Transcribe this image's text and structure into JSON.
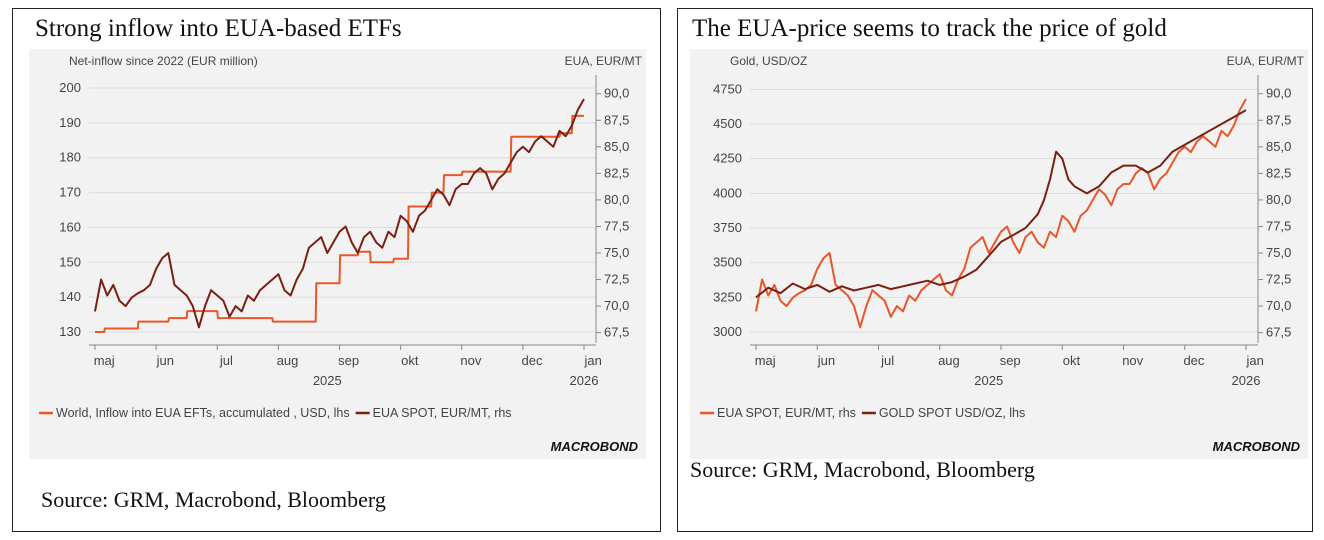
{
  "panels": [
    {
      "title": "Strong inflow into EUA-based ETFs",
      "source": "Source: GRM, Macrobond, Bloomberg",
      "logo": "MACROBOND"
    },
    {
      "title": "The EUA-price seems to track the price of gold",
      "source": "Source: GRM, Macrobond, Bloomberg",
      "logo": "MACROBOND"
    }
  ],
  "colors": {
    "orange": "#e8562a",
    "brown": "#7a1f12",
    "background": "#f2f2f2"
  },
  "chart_data": [
    {
      "type": "line",
      "title": "Strong inflow into EUA-based ETFs",
      "ylabel_left": "Net-inflow since 2022 (EUR million)",
      "ylabel_right": "EUA, EUR/MT",
      "ylim_left": [
        128,
        202
      ],
      "ylim_right": [
        66.9,
        91.2
      ],
      "yticks_left": [
        130,
        140,
        150,
        160,
        170,
        180,
        190,
        200
      ],
      "yticks_right": [
        "67,5",
        "70,0",
        "72,5",
        "75,0",
        "77,5",
        "80,0",
        "82,5",
        "85,0",
        "87,5",
        "90,0"
      ],
      "yticks_right_values": [
        67.5,
        70,
        72.5,
        75,
        77.5,
        80,
        82.5,
        85,
        87.5,
        90
      ],
      "x_months": [
        "maj",
        "jun",
        "jul",
        "aug",
        "sep",
        "okt",
        "nov",
        "dec",
        "jan"
      ],
      "x_years": [
        "2025",
        "2026"
      ],
      "grid": true,
      "series": [
        {
          "name": "World, Inflow into EUA EFTs, accumulated , USD, lhs",
          "axis": "left",
          "color": "#e8562a",
          "x": [
            0,
            0.15,
            0.16,
            0.7,
            0.71,
            1.2,
            1.21,
            1.5,
            1.51,
            2.0,
            2.01,
            2.2,
            2.21,
            2.9,
            2.91,
            3.6,
            3.61,
            3.62,
            3.7,
            3.71,
            4.0,
            4.01,
            4.3,
            4.31,
            4.5,
            4.51,
            4.88,
            4.89,
            5.12,
            5.13,
            5.2,
            5.5,
            5.51,
            5.7,
            5.71,
            6.0,
            6.01,
            6.5,
            6.51,
            6.8,
            6.81,
            7.0,
            7.01,
            7.3,
            7.31,
            7.6,
            7.61,
            7.8,
            7.81,
            8.0
          ],
          "values": [
            130,
            130,
            131,
            131,
            133,
            133,
            134,
            134,
            136,
            136,
            134,
            134,
            134,
            134,
            133,
            133,
            133,
            144,
            144,
            144,
            144,
            152,
            152,
            153,
            153,
            150,
            150,
            151,
            151,
            166,
            166,
            166,
            170,
            170,
            175,
            175,
            176,
            176,
            176,
            176,
            186,
            186,
            186,
            186,
            186,
            186,
            187,
            187,
            192,
            192
          ]
        },
        {
          "name": "EUA SPOT, EUR/MT, rhs",
          "axis": "right",
          "color": "#7a1f12",
          "x": [
            0,
            0.1,
            0.2,
            0.3,
            0.4,
            0.5,
            0.6,
            0.7,
            0.8,
            0.9,
            1.0,
            1.1,
            1.2,
            1.3,
            1.4,
            1.5,
            1.6,
            1.7,
            1.8,
            1.9,
            2.0,
            2.1,
            2.2,
            2.3,
            2.4,
            2.5,
            2.6,
            2.7,
            2.8,
            2.9,
            3.0,
            3.1,
            3.2,
            3.3,
            3.4,
            3.5,
            3.6,
            3.7,
            3.8,
            3.9,
            4.0,
            4.1,
            4.2,
            4.3,
            4.4,
            4.5,
            4.6,
            4.7,
            4.8,
            4.9,
            5.0,
            5.1,
            5.2,
            5.3,
            5.4,
            5.5,
            5.6,
            5.7,
            5.8,
            5.9,
            6.0,
            6.1,
            6.2,
            6.3,
            6.4,
            6.5,
            6.6,
            6.7,
            6.8,
            6.9,
            7.0,
            7.1,
            7.2,
            7.3,
            7.4,
            7.5,
            7.6,
            7.7,
            7.8,
            7.9,
            8.0
          ],
          "values": [
            69.5,
            72.5,
            71.0,
            72.0,
            70.5,
            70.0,
            70.8,
            71.2,
            71.5,
            72.0,
            73.5,
            74.5,
            75.0,
            72.0,
            71.5,
            71.0,
            70.0,
            68.0,
            70.0,
            71.5,
            71.0,
            70.5,
            69.0,
            70.0,
            69.5,
            71.0,
            70.5,
            71.5,
            72.0,
            72.5,
            73.0,
            71.5,
            71.0,
            72.5,
            73.5,
            75.5,
            76.0,
            76.5,
            75.0,
            76.0,
            77.0,
            77.5,
            76.0,
            75.0,
            76.5,
            77.0,
            76.0,
            75.5,
            77.0,
            76.5,
            78.5,
            78.0,
            77.0,
            78.5,
            79.0,
            80.0,
            81.0,
            80.5,
            79.5,
            81.0,
            81.5,
            81.5,
            82.5,
            83.0,
            82.5,
            81.0,
            82.0,
            82.5,
            83.5,
            84.5,
            85.0,
            84.5,
            85.5,
            86.0,
            85.5,
            85.0,
            86.5,
            86.0,
            87.0,
            88.5,
            89.5
          ]
        }
      ]
    },
    {
      "type": "line",
      "title": "The EUA-price seems to track the price of gold",
      "ylabel_left": "Gold, USD/OZ",
      "ylabel_right": "EUA, EUR/MT",
      "ylim_left": [
        2950,
        4810
      ],
      "ylim_right": [
        66.9,
        91.2
      ],
      "yticks_left": [
        3000,
        3250,
        3500,
        3750,
        4000,
        4250,
        4500,
        4750
      ],
      "yticks_right": [
        "67,5",
        "70,0",
        "72,5",
        "75,0",
        "77,5",
        "80,0",
        "82,5",
        "85,0",
        "87,5",
        "90,0"
      ],
      "yticks_right_values": [
        67.5,
        70,
        72.5,
        75,
        77.5,
        80,
        82.5,
        85,
        87.5,
        90
      ],
      "x_months": [
        "maj",
        "jun",
        "jul",
        "aug",
        "sep",
        "okt",
        "nov",
        "dec",
        "jan"
      ],
      "x_years": [
        "2025",
        "2026"
      ],
      "grid": true,
      "series": [
        {
          "name": "EUA SPOT, EUR/MT, rhs",
          "axis": "right",
          "color": "#e8562a",
          "x": [
            0,
            0.1,
            0.2,
            0.3,
            0.4,
            0.5,
            0.6,
            0.7,
            0.8,
            0.9,
            1.0,
            1.1,
            1.2,
            1.3,
            1.4,
            1.5,
            1.6,
            1.7,
            1.8,
            1.9,
            2.0,
            2.1,
            2.2,
            2.3,
            2.4,
            2.5,
            2.6,
            2.7,
            2.8,
            2.9,
            3.0,
            3.1,
            3.2,
            3.3,
            3.4,
            3.5,
            3.6,
            3.7,
            3.8,
            3.9,
            4.0,
            4.1,
            4.2,
            4.3,
            4.4,
            4.5,
            4.6,
            4.7,
            4.8,
            4.9,
            5.0,
            5.1,
            5.2,
            5.3,
            5.4,
            5.5,
            5.6,
            5.7,
            5.8,
            5.9,
            6.0,
            6.1,
            6.2,
            6.3,
            6.4,
            6.5,
            6.6,
            6.7,
            6.8,
            6.9,
            7.0,
            7.1,
            7.2,
            7.3,
            7.4,
            7.5,
            7.6,
            7.7,
            7.8,
            7.9,
            8.0
          ],
          "values": [
            69.5,
            72.5,
            71.0,
            72.0,
            70.5,
            70.0,
            70.8,
            71.2,
            71.5,
            72.0,
            73.5,
            74.5,
            75.0,
            72.0,
            71.5,
            71.0,
            70.0,
            68.0,
            70.0,
            71.5,
            71.0,
            70.5,
            69.0,
            70.0,
            69.5,
            71.0,
            70.5,
            71.5,
            72.0,
            72.5,
            73.0,
            71.5,
            71.0,
            72.5,
            73.5,
            75.5,
            76.0,
            76.5,
            75.0,
            76.0,
            77.0,
            77.5,
            76.0,
            75.0,
            76.5,
            77.0,
            76.0,
            75.5,
            77.0,
            76.5,
            78.5,
            78.0,
            77.0,
            78.5,
            79.0,
            80.0,
            81.0,
            80.5,
            79.5,
            81.0,
            81.5,
            81.5,
            82.5,
            83.0,
            82.5,
            81.0,
            82.0,
            82.5,
            83.5,
            84.5,
            85.0,
            84.5,
            85.5,
            86.0,
            85.5,
            85.0,
            86.5,
            86.0,
            87.0,
            88.5,
            89.5
          ]
        },
        {
          "name": "GOLD SPOT USD/OZ, lhs",
          "axis": "left",
          "color": "#7a1f12",
          "x": [
            0,
            0.2,
            0.4,
            0.6,
            0.8,
            1.0,
            1.2,
            1.4,
            1.6,
            1.8,
            2.0,
            2.2,
            2.4,
            2.6,
            2.8,
            3.0,
            3.2,
            3.4,
            3.6,
            3.8,
            4.0,
            4.2,
            4.4,
            4.6,
            4.7,
            4.8,
            4.9,
            5.0,
            5.1,
            5.2,
            5.4,
            5.6,
            5.8,
            6.0,
            6.2,
            6.4,
            6.6,
            6.8,
            7.0,
            7.2,
            7.4,
            7.6,
            7.8,
            8.0
          ],
          "values": [
            3250,
            3320,
            3280,
            3350,
            3310,
            3340,
            3290,
            3330,
            3300,
            3320,
            3340,
            3310,
            3330,
            3350,
            3370,
            3340,
            3360,
            3400,
            3450,
            3550,
            3650,
            3700,
            3750,
            3850,
            3950,
            4100,
            4300,
            4250,
            4100,
            4050,
            4000,
            4050,
            4150,
            4200,
            4200,
            4150,
            4200,
            4300,
            4350,
            4400,
            4450,
            4500,
            4550,
            4600
          ]
        }
      ]
    }
  ]
}
